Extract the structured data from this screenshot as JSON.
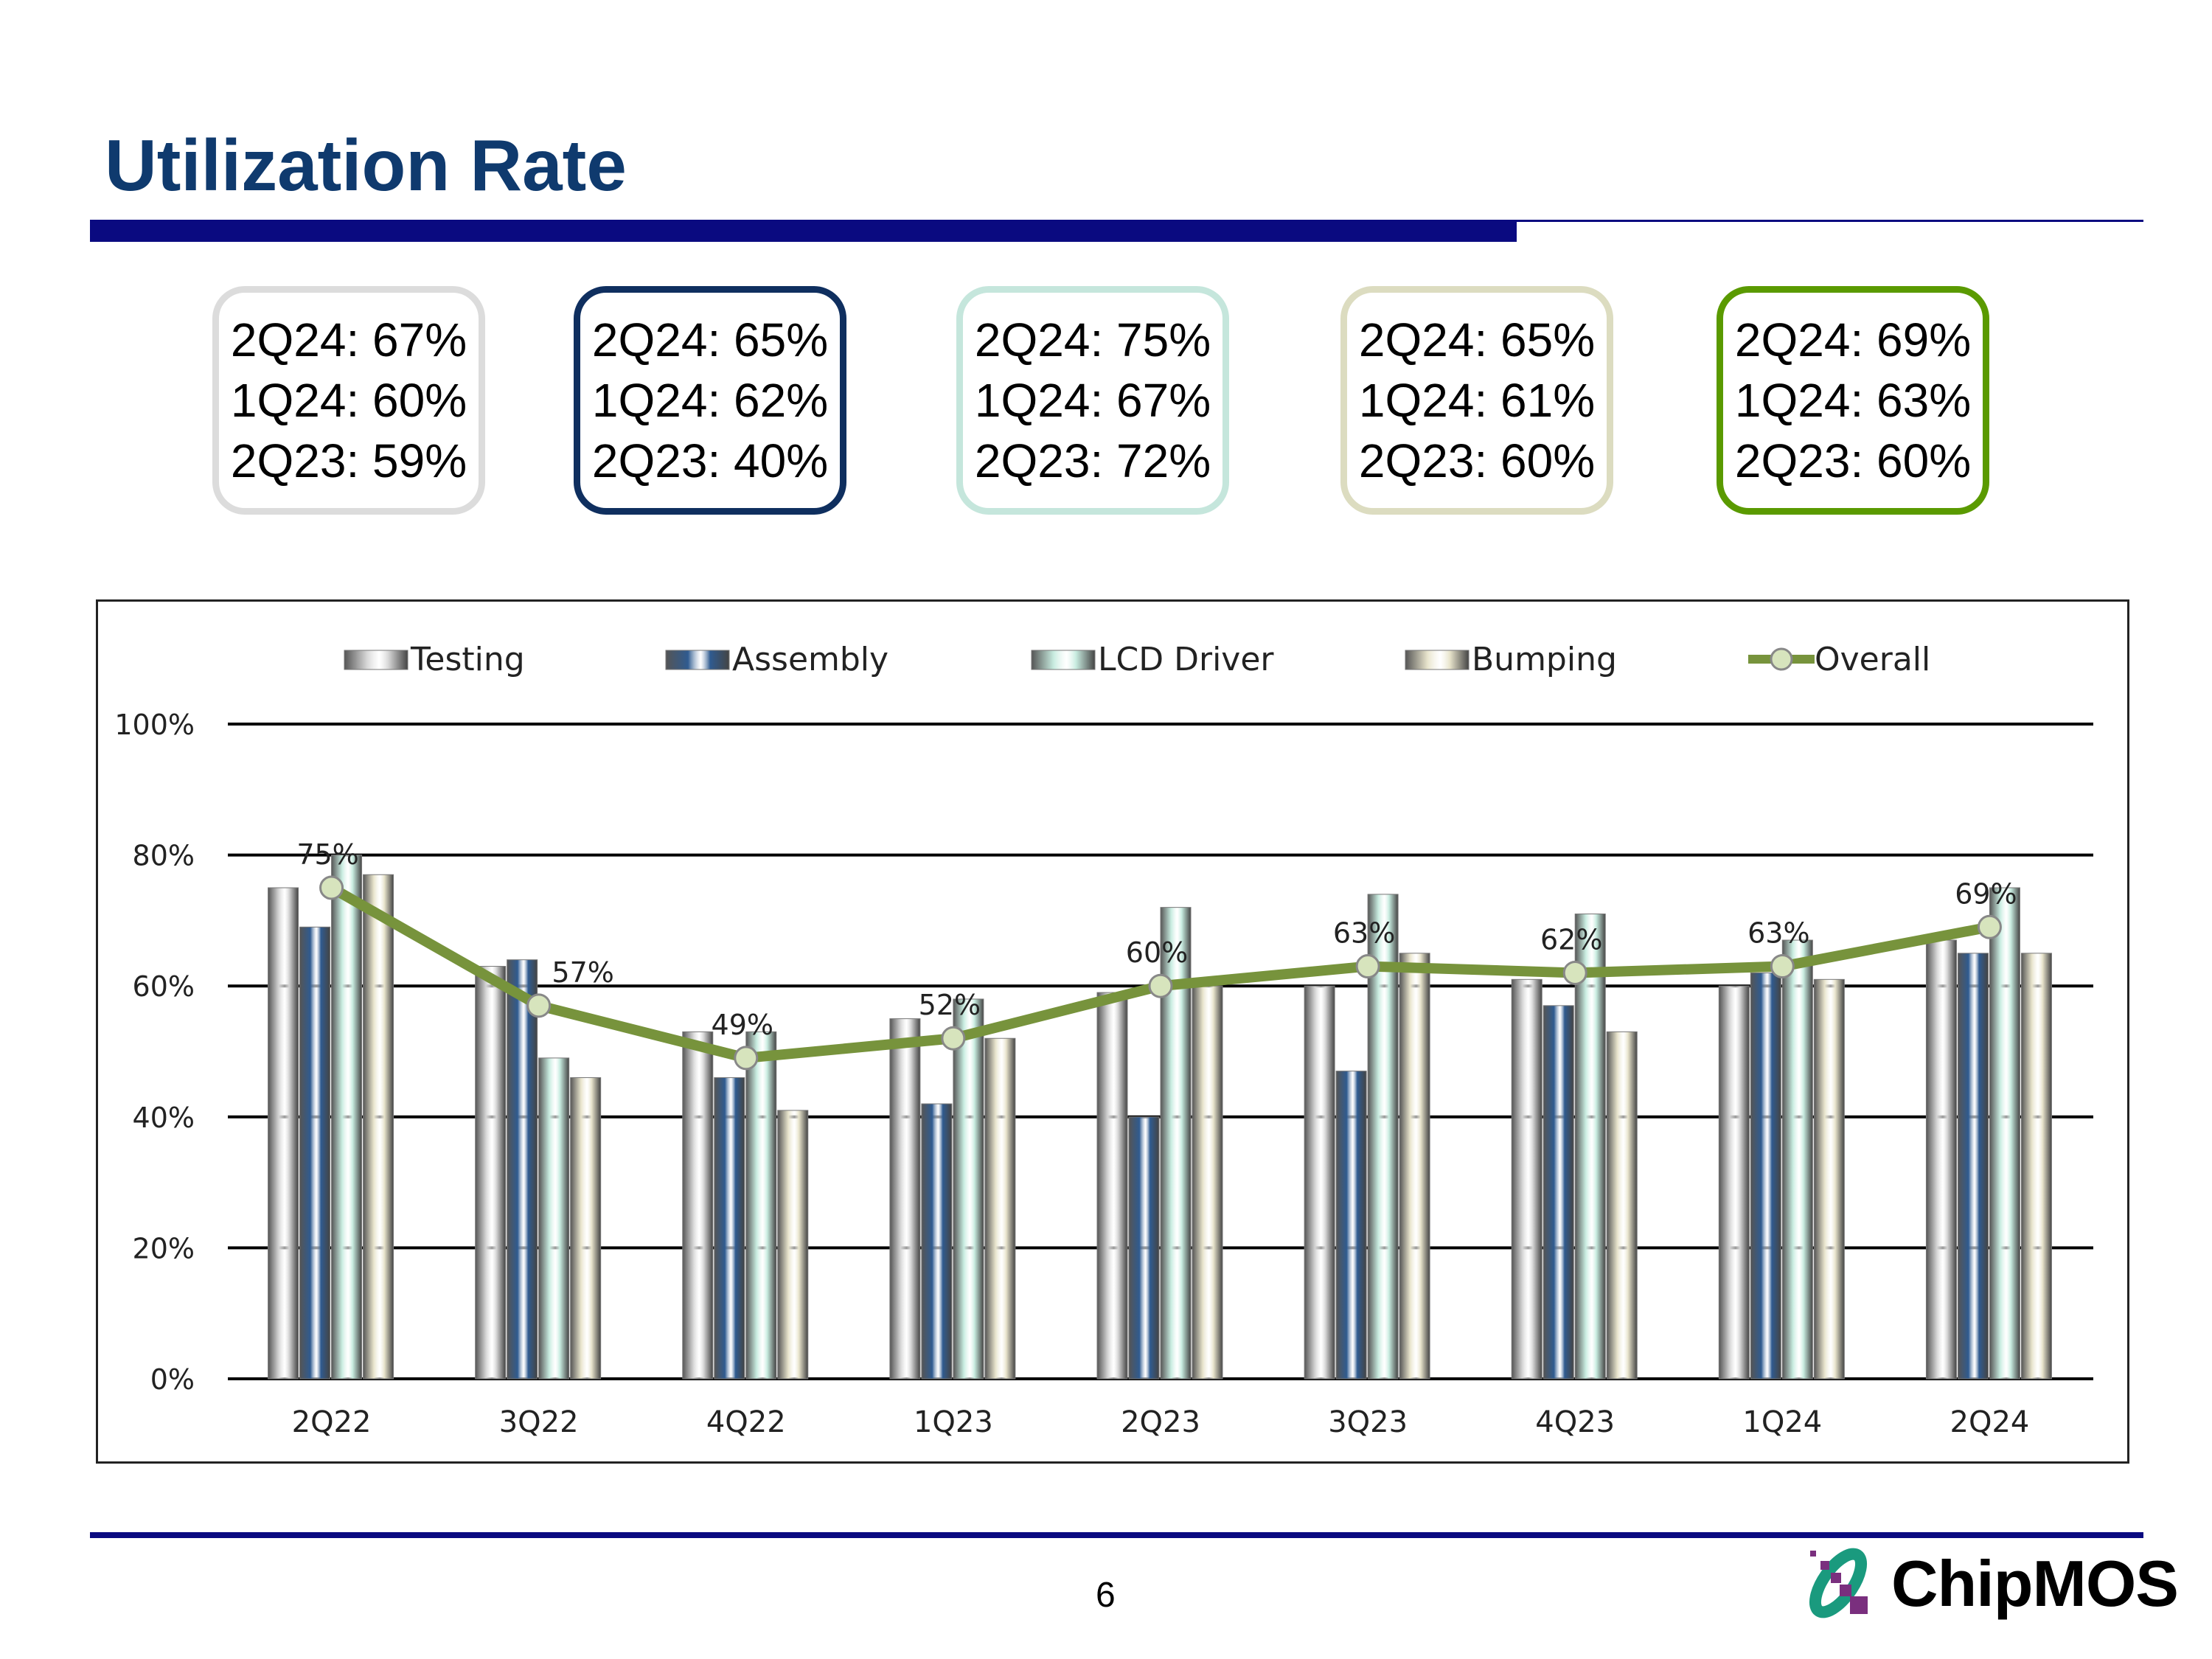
{
  "title": "Utilization Rate",
  "page_number": "6",
  "logo_text": "ChipMOS",
  "summary_boxes": [
    {
      "segment": "Testing",
      "border": "#dcdcdc",
      "lines": [
        "2Q24: 67%",
        "1Q24: 60%",
        "2Q23: 59%"
      ]
    },
    {
      "segment": "Assembly",
      "border": "#0f2f5f",
      "lines": [
        "2Q24: 65%",
        "1Q24: 62%",
        "2Q23: 40%"
      ]
    },
    {
      "segment": "LCD Driver",
      "border": "#c5e6dc",
      "lines": [
        "2Q24: 75%",
        "1Q24: 67%",
        "2Q23: 72%"
      ]
    },
    {
      "segment": "Bumping",
      "border": "#dcdcc0",
      "lines": [
        "2Q24: 65%",
        "1Q24: 61%",
        "2Q23: 60%"
      ]
    },
    {
      "segment": "Overall",
      "border": "#5a9a00",
      "lines": [
        "2Q24: 69%",
        "1Q24: 63%",
        "2Q23: 60%"
      ]
    }
  ],
  "chart_data": {
    "type": "bar",
    "title": "",
    "xlabel": "",
    "ylabel": "",
    "ylim": [
      0,
      100
    ],
    "yticks": [
      "0%",
      "20%",
      "40%",
      "60%",
      "80%",
      "100%"
    ],
    "grid": true,
    "legend_position": "top",
    "categories": [
      "2Q22",
      "3Q22",
      "4Q22",
      "1Q23",
      "2Q23",
      "3Q23",
      "4Q23",
      "1Q24",
      "2Q24"
    ],
    "series": [
      {
        "name": "Testing",
        "kind": "bar",
        "color": "#d4d4d4",
        "values": [
          75,
          63,
          53,
          55,
          59,
          60,
          61,
          60,
          67
        ]
      },
      {
        "name": "Assembly",
        "kind": "bar",
        "color": "#2f5b90",
        "values": [
          69,
          64,
          46,
          42,
          40,
          47,
          57,
          62,
          65
        ]
      },
      {
        "name": "LCD Driver",
        "kind": "bar",
        "color": "#c8ece0",
        "values": [
          80,
          49,
          53,
          58,
          72,
          74,
          71,
          67,
          75
        ]
      },
      {
        "name": "Bumping",
        "kind": "bar",
        "color": "#e8e4cc",
        "values": [
          77,
          46,
          41,
          52,
          60,
          65,
          53,
          61,
          65
        ]
      },
      {
        "name": "Overall",
        "kind": "line",
        "color": "#77933c",
        "values": [
          75,
          57,
          49,
          52,
          60,
          63,
          62,
          63,
          69
        ],
        "labels": [
          "75%",
          "57%",
          "49%",
          "52%",
          "60%",
          "63%",
          "62%",
          "63%",
          "69%"
        ]
      }
    ]
  }
}
